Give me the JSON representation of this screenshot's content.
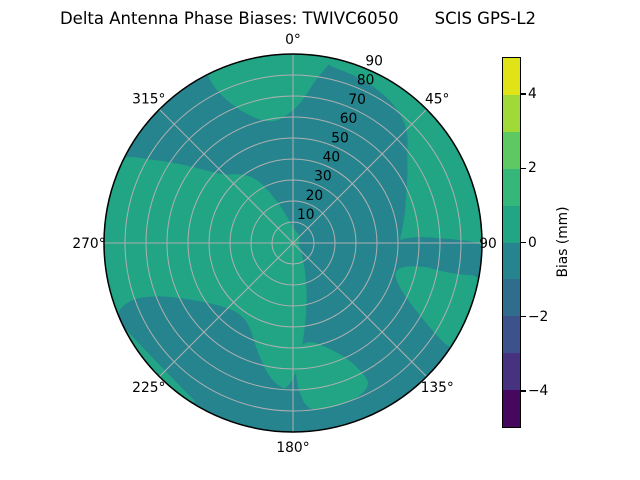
{
  "title": {
    "left": "Delta Antenna Phase Biases: TWIVC6050",
    "right": "SCIS GPS-L2"
  },
  "chart_data": {
    "type": "heatmap",
    "projection": "polar",
    "description": "Polar sky plot of delta antenna phase biases (azimuth vs zenith angle), filled contours at 1 mm steps; visible bands are -1..0 mm (teal) and 0..1 mm (green)",
    "title": "Delta Antenna Phase Biases: TWIVC6050      SCIS GPS-L2",
    "grid": true,
    "colors": {
      "teal": "#25848e",
      "green": "#21a585",
      "grid": "#b0b0b0",
      "rim": "#000000",
      "background": "#ffffff"
    },
    "r_axis": {
      "min": 0,
      "max": 90,
      "tick_step": 10,
      "tick_labels": [
        "10",
        "20",
        "30",
        "40",
        "50",
        "60",
        "70",
        "80",
        "90"
      ],
      "label_azimuth_deg": 24
    },
    "theta_axis": {
      "label_radius_px": 204,
      "labels": [
        {
          "text": "0°",
          "angle": 0
        },
        {
          "text": "45°",
          "angle": 45
        },
        {
          "text": "90",
          "angle": 90,
          "radius_px": 195
        },
        {
          "text": "135°",
          "angle": 135
        },
        {
          "text": "180°",
          "angle": 180
        },
        {
          "text": "225°",
          "angle": 225
        },
        {
          "text": "270°",
          "angle": 270
        },
        {
          "text": "315°",
          "angle": 315
        }
      ]
    },
    "base_band": {
      "color": "teal",
      "band_mm": "-1 to 0"
    },
    "regions": [
      {
        "name": "green-north-cap",
        "color": "green",
        "band_mm": "0 to 1",
        "points": [
          [
            333,
            92
          ],
          [
            341,
            92
          ],
          [
            349,
            92
          ],
          [
            357,
            92
          ],
          [
            4,
            92
          ],
          [
            10,
            92
          ],
          [
            12,
            88
          ],
          [
            8,
            79
          ],
          [
            4,
            68
          ],
          [
            358,
            61
          ],
          [
            350,
            58
          ],
          [
            342,
            63
          ],
          [
            336,
            72
          ],
          [
            333,
            83
          ]
        ]
      },
      {
        "name": "green-east-ring",
        "color": "green",
        "band_mm": "0 to 1",
        "points": [
          [
            8,
            92
          ],
          [
            16,
            92
          ],
          [
            24,
            92
          ],
          [
            32,
            92
          ],
          [
            40,
            92
          ],
          [
            48,
            92
          ],
          [
            56,
            92
          ],
          [
            64,
            92
          ],
          [
            72,
            92
          ],
          [
            80,
            92
          ],
          [
            88,
            92
          ],
          [
            94,
            92
          ],
          [
            94,
            50
          ],
          [
            84,
            52
          ],
          [
            76,
            55
          ],
          [
            68,
            58
          ],
          [
            60,
            63
          ],
          [
            52,
            69
          ],
          [
            46,
            76
          ],
          [
            40,
            80
          ],
          [
            32,
            83
          ],
          [
            22,
            85
          ],
          [
            12,
            86
          ],
          [
            9,
            88
          ]
        ]
      },
      {
        "name": "green-southeast-rim-patch",
        "color": "green",
        "band_mm": "0 to 1",
        "points": [
          [
            102,
            92
          ],
          [
            110,
            92
          ],
          [
            118,
            92
          ],
          [
            124,
            92
          ],
          [
            123,
            82
          ],
          [
            117,
            62
          ],
          [
            111,
            53
          ],
          [
            105,
            50
          ],
          [
            101,
            56
          ],
          [
            100,
            68
          ],
          [
            100,
            80
          ],
          [
            100,
            88
          ]
        ]
      },
      {
        "name": "green-west-mass",
        "color": "green",
        "band_mm": "0 to 1",
        "points": [
          [
            312,
            50
          ],
          [
            305,
            66
          ],
          [
            300,
            80
          ],
          [
            297,
            92
          ],
          [
            290,
            92
          ],
          [
            283,
            92
          ],
          [
            276,
            92
          ],
          [
            269,
            92
          ],
          [
            262,
            92
          ],
          [
            255,
            92
          ],
          [
            248,
            92
          ],
          [
            241,
            92
          ],
          [
            234,
            92
          ],
          [
            227,
            92
          ],
          [
            221,
            92
          ],
          [
            215,
            92
          ],
          [
            208,
            86
          ],
          [
            200,
            78
          ],
          [
            192,
            73
          ],
          [
            184,
            71
          ],
          [
            179,
            64
          ],
          [
            175,
            50
          ],
          [
            170,
            36
          ],
          [
            164,
            24
          ],
          [
            156,
            14
          ],
          [
            146,
            8
          ],
          [
            130,
            5
          ],
          [
            110,
            3
          ],
          [
            80,
            3
          ],
          [
            40,
            5
          ],
          [
            8,
            6
          ],
          [
            352,
            10
          ],
          [
            344,
            16
          ],
          [
            336,
            26
          ],
          [
            330,
            36
          ],
          [
            322,
            42
          ],
          [
            316,
            45
          ]
        ]
      },
      {
        "name": "green-south-patch",
        "color": "green",
        "band_mm": "0 to 1",
        "points": [
          [
            151,
            74
          ],
          [
            154,
            62
          ],
          [
            162,
            52
          ],
          [
            171,
            47
          ],
          [
            177,
            50
          ],
          [
            179,
            60
          ],
          [
            178,
            70
          ],
          [
            175,
            80
          ],
          [
            167,
            81
          ],
          [
            158,
            80
          ],
          [
            153,
            78
          ]
        ]
      },
      {
        "name": "teal-southwest-band",
        "color": "teal",
        "band_mm": "-1 to 0",
        "points": [
          [
            178,
            72
          ],
          [
            188,
            68
          ],
          [
            198,
            55
          ],
          [
            208,
            44
          ],
          [
            220,
            42
          ],
          [
            233,
            48
          ],
          [
            243,
            58
          ],
          [
            249,
            70
          ],
          [
            251,
            82
          ],
          [
            248,
            92
          ],
          [
            238,
            88
          ],
          [
            226,
            86
          ],
          [
            214,
            88
          ],
          [
            204,
            92
          ],
          [
            196,
            92
          ],
          [
            188,
            92
          ],
          [
            180,
            92
          ],
          [
            176,
            86
          ],
          [
            175,
            80
          ]
        ]
      },
      {
        "name": "teal-east-rim-patch",
        "color": "teal",
        "band_mm": "-1 to 0",
        "points": [
          [
            89,
            48
          ],
          [
            96,
            52
          ],
          [
            100,
            62
          ],
          [
            101,
            76
          ],
          [
            100,
            92
          ],
          [
            95,
            92
          ],
          [
            90,
            92
          ],
          [
            88,
            70
          ],
          [
            87,
            57
          ]
        ]
      }
    ],
    "colorbar": {
      "label": "Bias (mm)",
      "min": -5,
      "max": 5,
      "tick_values": [
        4,
        2,
        0,
        -2,
        -4
      ],
      "tick_labels": [
        "4",
        "2",
        "0",
        "−2",
        "−4"
      ],
      "segment_colors_top_to_bottom": [
        "#dfe318",
        "#a0da39",
        "#5ec962",
        "#35b779",
        "#21a585",
        "#25848e",
        "#2f6c8e",
        "#3b528b",
        "#46327e",
        "#46085c"
      ]
    }
  }
}
